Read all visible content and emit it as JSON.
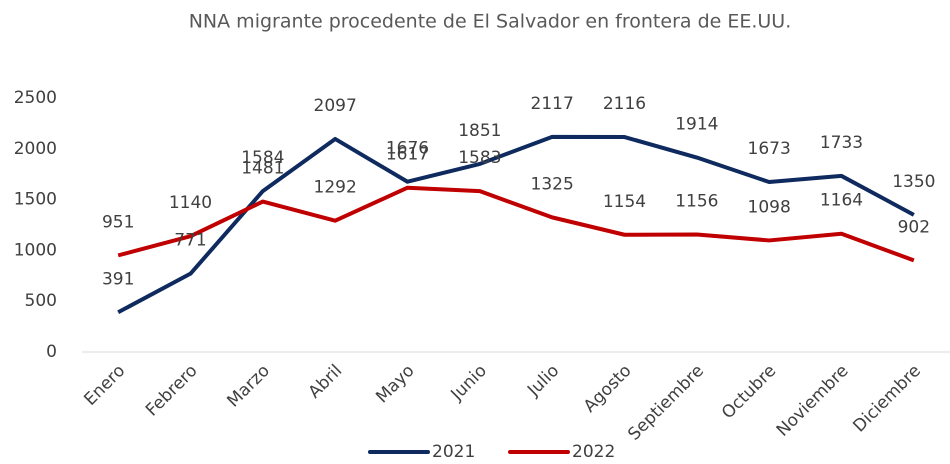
{
  "chart_data": {
    "type": "line",
    "title": "NNA migrante procedente de El Salvador en frontera de EE.UU.",
    "categories": [
      "Enero",
      "Febrero",
      "Marzo",
      "Abril",
      "Mayo",
      "Junio",
      "Julio",
      "Agosto",
      "Septiembre",
      "Octubre",
      "Noviembre",
      "Diciembre"
    ],
    "series": [
      {
        "name": "2021",
        "color": "#0e2a5e",
        "values": [
          391,
          771,
          1584,
          2097,
          1676,
          1851,
          2117,
          2116,
          1914,
          1673,
          1733,
          1350
        ]
      },
      {
        "name": "2022",
        "color": "#c00000",
        "values": [
          951,
          1140,
          1481,
          1292,
          1617,
          1583,
          1325,
          1154,
          1156,
          1098,
          1164,
          902
        ]
      }
    ],
    "ylim": [
      0,
      2500
    ],
    "yticks": [
      0,
      500,
      1000,
      1500,
      2000,
      2500
    ],
    "grid": false,
    "legend": "bottom"
  }
}
